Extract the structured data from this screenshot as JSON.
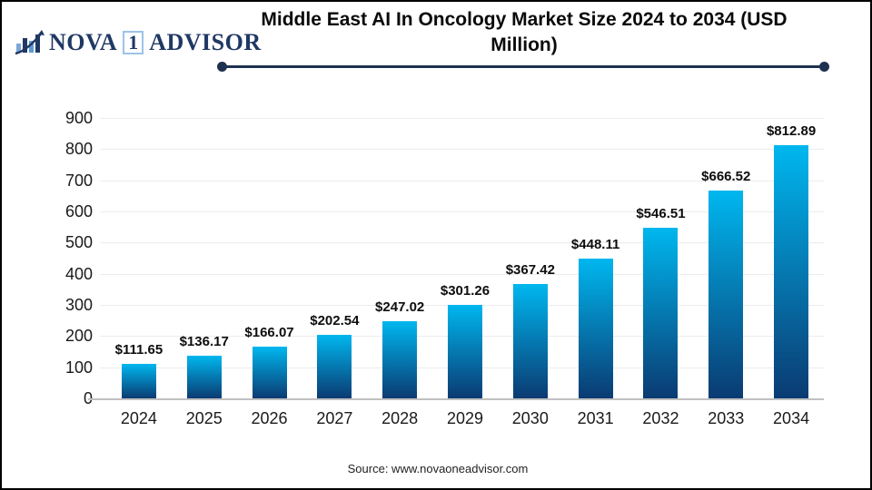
{
  "header": {
    "logo": {
      "brand_part1": "NOVA",
      "brand_number": "1",
      "brand_part2": "ADVISOR"
    },
    "title_lines": {
      "0": "Middle East AI In Oncology Market Size 2024 to 2034 (USD",
      "1": "Million)"
    }
  },
  "chart_data": {
    "type": "bar",
    "title": "Middle East AI In Oncology Market Size 2024 to 2034 (USD Million)",
    "categories": [
      "2024",
      "2025",
      "2026",
      "2027",
      "2028",
      "2029",
      "2030",
      "2031",
      "2032",
      "2033",
      "2034"
    ],
    "values": [
      111.65,
      136.17,
      166.07,
      202.54,
      247.02,
      301.26,
      367.42,
      448.11,
      546.51,
      666.52,
      812.89
    ],
    "data_labels": [
      "$111.65",
      "$136.17",
      "$166.07",
      "$202.54",
      "$247.02",
      "$301.26",
      "$367.42",
      "$448.11",
      "$546.51",
      "$666.52",
      "$812.89"
    ],
    "xlabel": "",
    "ylabel": "",
    "ylim": [
      0,
      900
    ],
    "y_tick_step": 100,
    "grid": true,
    "legend": false,
    "bar_gradient_top": "#00b7ef",
    "bar_gradient_bottom": "#0a3b72"
  },
  "footer": {
    "source": "Source: www.novaoneadvisor.com"
  },
  "colors": {
    "accent_navy": "#1f3150",
    "logo_navy": "#1f3864",
    "gridline": "#ececec",
    "axis_line": "#c0c0c0"
  }
}
